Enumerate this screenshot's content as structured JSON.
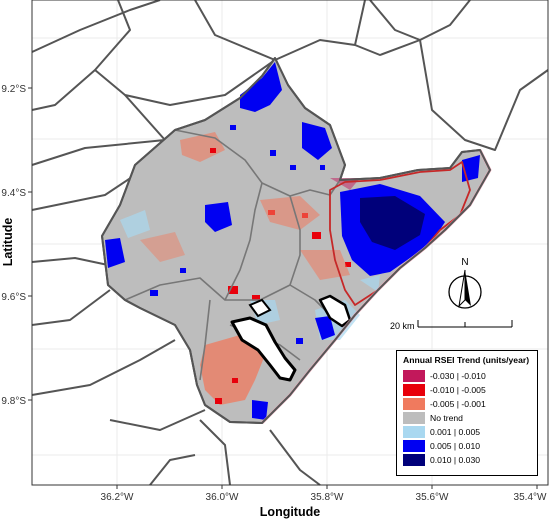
{
  "map": {
    "x_ticks": [
      "36.2°W",
      "36.0°W",
      "35.8°W",
      "35.6°W",
      "35.4°W"
    ],
    "y_ticks": [
      "9.2°S",
      "9.4°S",
      "9.6°S",
      "9.8°S"
    ],
    "xlabel": "Longitude",
    "ylabel": "Latitude",
    "north_label": "N",
    "scale_label": "20 km"
  },
  "legend": {
    "title": "Annual RSEI Trend (units/year)",
    "items": [
      {
        "label": "-0.030 | -0.010",
        "color": "#c2185b"
      },
      {
        "label": "-0.010 | -0.005",
        "color": "#e8000b"
      },
      {
        "label": "-0.005 | -0.001",
        "color": "#f07a5e"
      },
      {
        "label": "No trend",
        "color": "#bdbdbd"
      },
      {
        "label": "0.001 |  0.005",
        "color": "#a9d8f0"
      },
      {
        "label": "0.005 |  0.010",
        "color": "#0000f2"
      },
      {
        "label": "0.010 |  0.030",
        "color": "#00007a"
      }
    ]
  }
}
